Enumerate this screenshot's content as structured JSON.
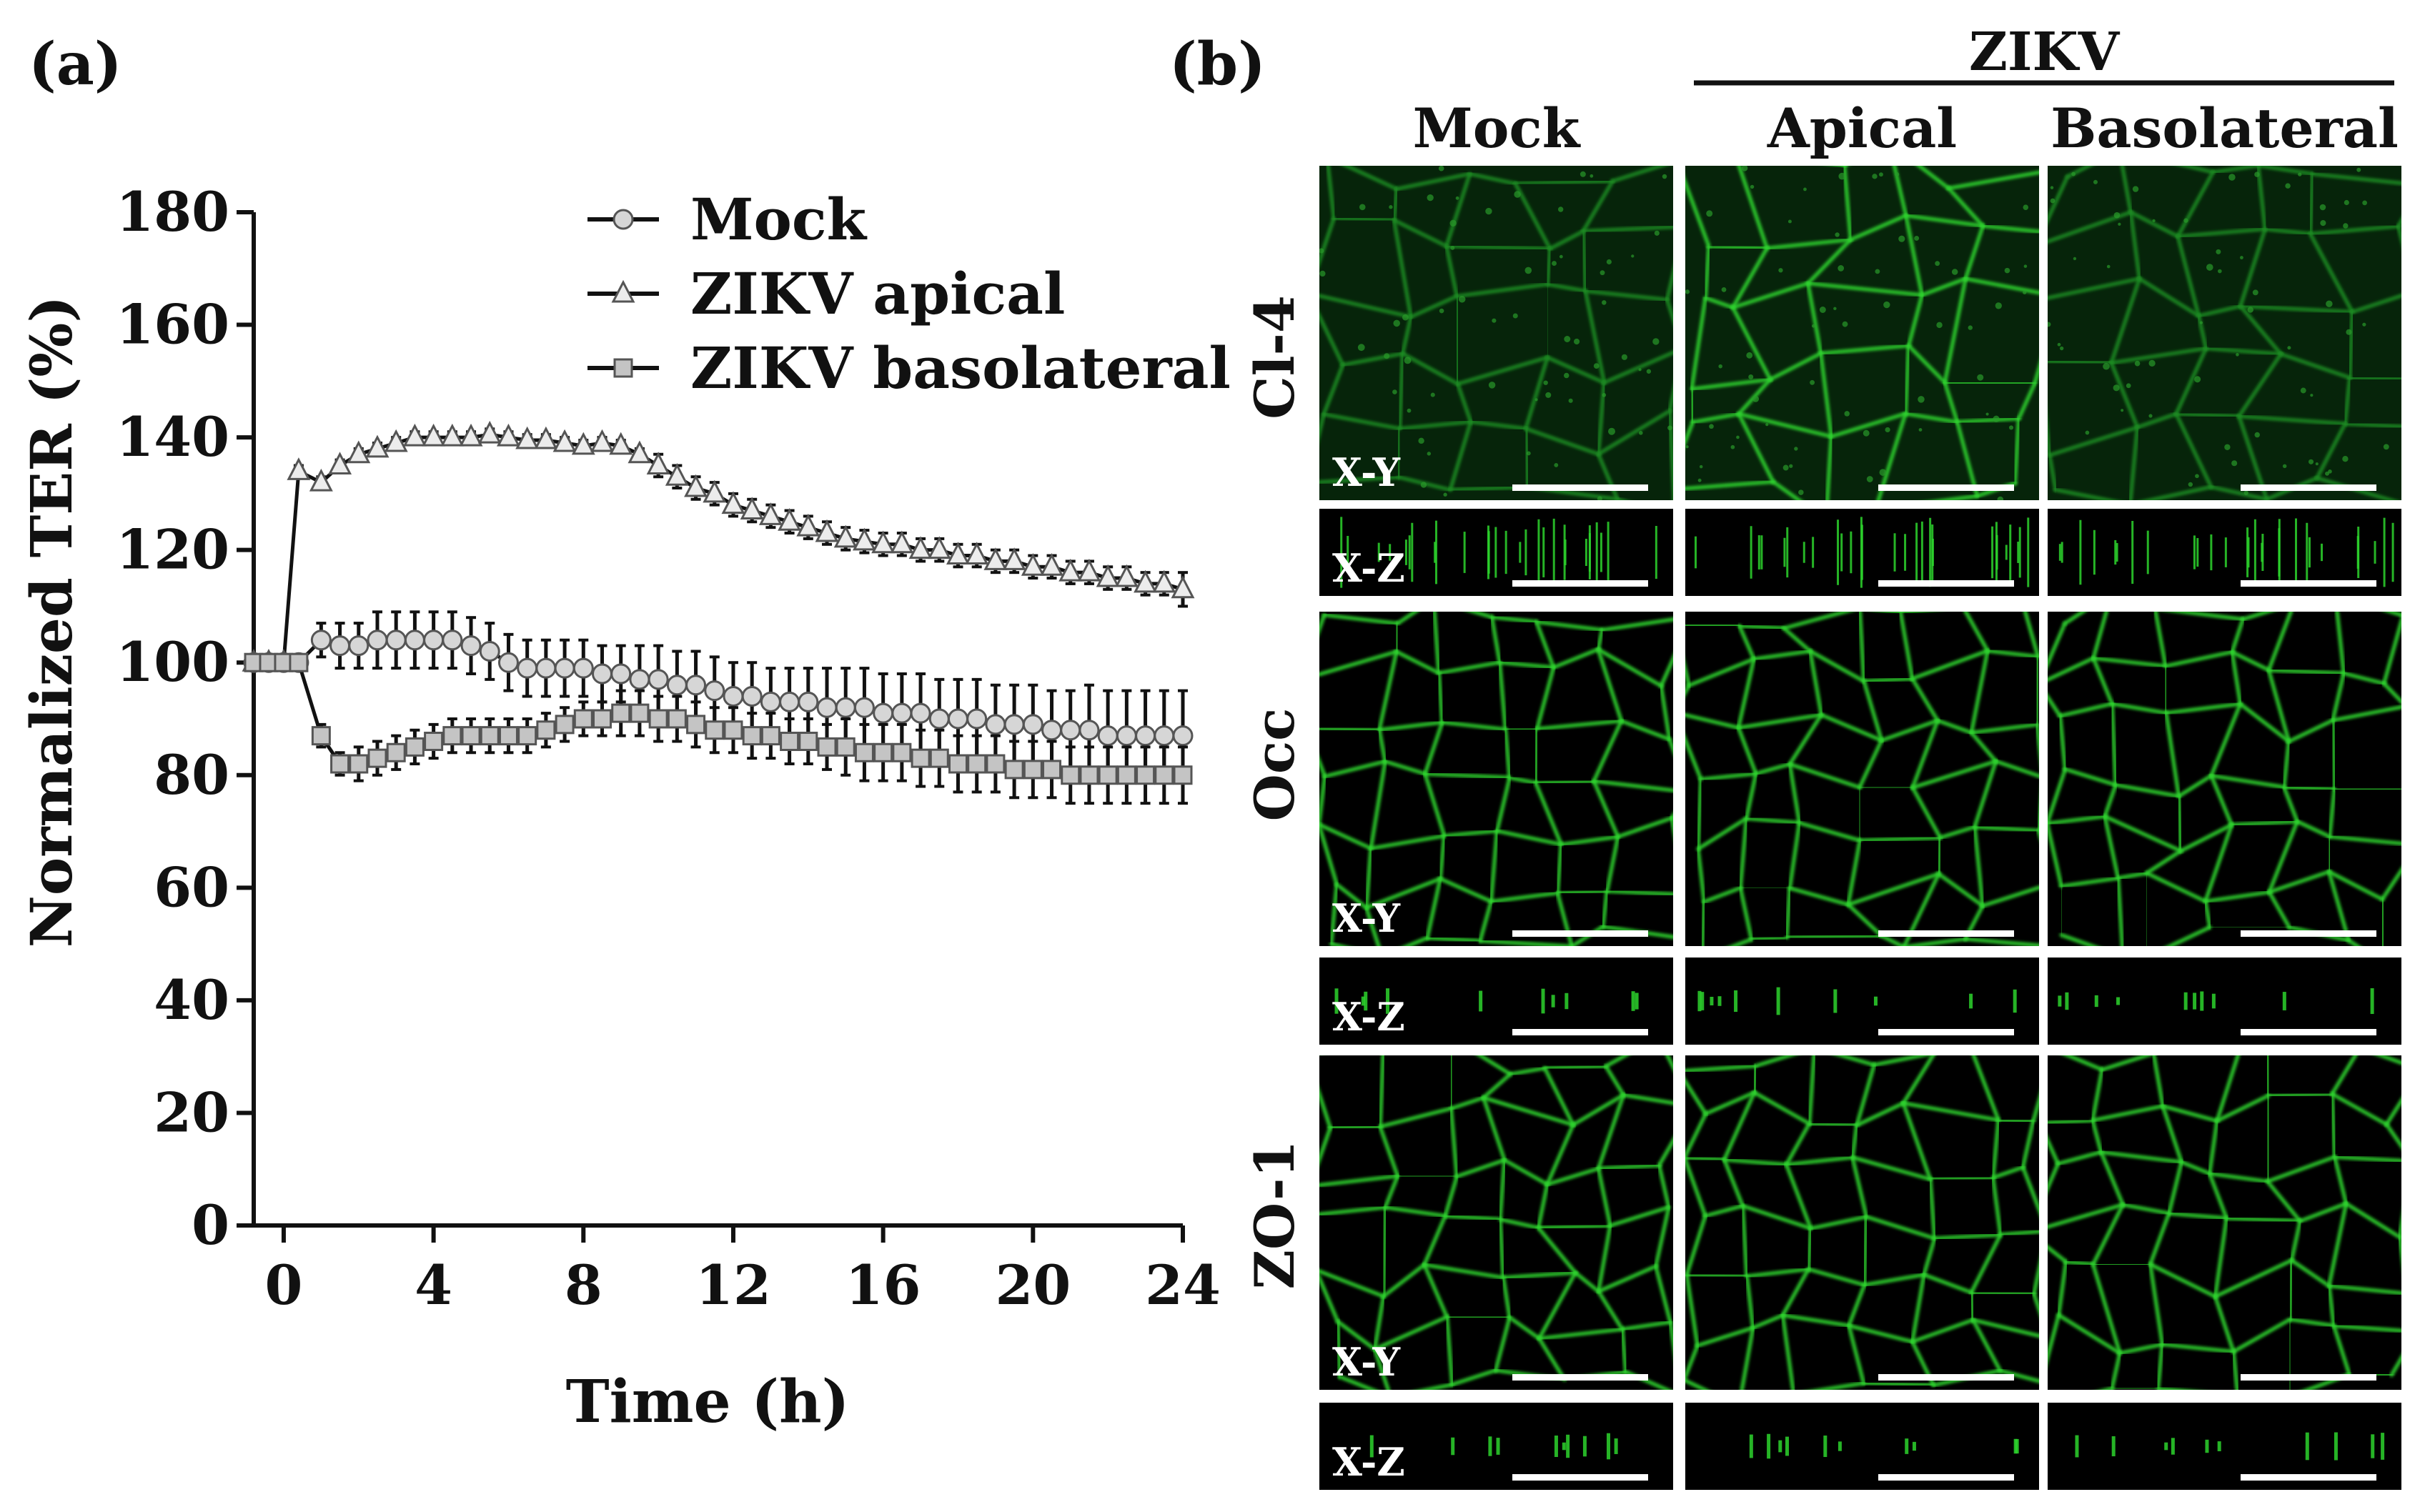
{
  "panel_a": {
    "label": "(a)"
  },
  "panel_b": {
    "label": "(b)",
    "group_header": "ZIKV",
    "columns": [
      "Mock",
      "Apical",
      "Basolateral"
    ],
    "rows": [
      {
        "name": "Cl-4",
        "sublabels": [
          "X-Y",
          "X-Z"
        ]
      },
      {
        "name": "Occ",
        "sublabels": [
          "X-Y",
          "X-Z"
        ]
      },
      {
        "name": "ZO-1",
        "sublabels": [
          "X-Y",
          "X-Z"
        ]
      }
    ],
    "colors": {
      "stain": "#2dd42d",
      "stain_dim": "#0d6a10",
      "background": "#000000",
      "scalebar": "#ffffff"
    }
  },
  "chart_data": {
    "type": "line",
    "title": "",
    "xlabel": "Time (h)",
    "ylabel": "Normalized TER (%)",
    "xlim": [
      -0.8,
      24
    ],
    "ylim": [
      0,
      180
    ],
    "xticks": [
      0,
      4,
      8,
      12,
      16,
      20,
      24
    ],
    "yticks": [
      0,
      20,
      40,
      60,
      80,
      100,
      120,
      140,
      160,
      180
    ],
    "legend_position": "top-right",
    "x": [
      -0.8,
      -0.4,
      0,
      0.4,
      1,
      1.5,
      2,
      2.5,
      3,
      3.5,
      4,
      4.5,
      5,
      5.5,
      6,
      6.5,
      7,
      7.5,
      8,
      8.5,
      9,
      9.5,
      10,
      10.5,
      11,
      11.5,
      12,
      12.5,
      13,
      13.5,
      14,
      14.5,
      15,
      15.5,
      16,
      16.5,
      17,
      17.5,
      18,
      18.5,
      19,
      19.5,
      20,
      20.5,
      21,
      21.5,
      22,
      22.5,
      23,
      23.5,
      24
    ],
    "series": [
      {
        "name": "Mock",
        "marker": "circle",
        "values": [
          100,
          100,
          100,
          100,
          104,
          103,
          103,
          104,
          104,
          104,
          104,
          104,
          103,
          102,
          100,
          99,
          99,
          99,
          99,
          98,
          98,
          97,
          97,
          96,
          96,
          95,
          94,
          94,
          93,
          93,
          93,
          92,
          92,
          92,
          91,
          91,
          91,
          90,
          90,
          90,
          89,
          89,
          89,
          88,
          88,
          88,
          87,
          87,
          87,
          87,
          87
        ],
        "error": [
          0,
          0,
          0,
          0,
          3,
          4,
          4,
          5,
          5,
          5,
          5,
          5,
          5,
          5,
          5,
          5,
          5,
          5,
          5,
          5,
          5,
          6,
          6,
          6,
          6,
          6,
          6,
          6,
          6,
          6,
          6,
          7,
          7,
          7,
          7,
          7,
          7,
          7,
          7,
          7,
          7,
          7,
          7,
          7,
          7,
          8,
          8,
          8,
          8,
          8,
          8
        ]
      },
      {
        "name": "ZIKV apical",
        "marker": "triangle",
        "values": [
          100,
          100,
          100,
          134,
          132,
          135,
          137,
          138,
          139,
          140,
          140,
          140,
          140,
          140.5,
          140,
          139.5,
          139.5,
          139,
          138.5,
          139,
          138.5,
          137,
          135,
          133,
          131,
          130,
          128,
          127,
          126,
          125,
          124,
          123,
          122,
          121.5,
          121,
          121,
          120,
          120,
          119,
          119,
          118,
          118,
          117,
          117,
          116,
          116,
          115,
          115,
          114,
          114,
          113
        ],
        "error": [
          0,
          0,
          0,
          1,
          1,
          1,
          1,
          1,
          1,
          1,
          1,
          1,
          1,
          1,
          1,
          1,
          1,
          1,
          1,
          1,
          1,
          1,
          2,
          2,
          2,
          2,
          2,
          2,
          2,
          2,
          2,
          2,
          2,
          2,
          2,
          2,
          2,
          2,
          2,
          2,
          2,
          2,
          2,
          2,
          2,
          2,
          2,
          2,
          2,
          2,
          3
        ]
      },
      {
        "name": "ZIKV basolateral",
        "marker": "square",
        "values": [
          100,
          100,
          100,
          100,
          87,
          82,
          82,
          83,
          84,
          85,
          86,
          87,
          87,
          87,
          87,
          87,
          88,
          89,
          90,
          90,
          91,
          91,
          90,
          90,
          89,
          88,
          88,
          87,
          87,
          86,
          86,
          85,
          85,
          84,
          84,
          84,
          83,
          83,
          82,
          82,
          82,
          81,
          81,
          81,
          80,
          80,
          80,
          80,
          80,
          80,
          80
        ],
        "error": [
          0,
          0,
          0,
          0,
          2,
          2,
          3,
          3,
          3,
          3,
          3,
          3,
          3,
          3,
          3,
          3,
          3,
          3,
          3,
          3,
          4,
          4,
          4,
          4,
          4,
          4,
          4,
          4,
          4,
          4,
          4,
          4,
          5,
          5,
          5,
          5,
          5,
          5,
          5,
          5,
          5,
          5,
          5,
          5,
          5,
          5,
          5,
          5,
          5,
          5,
          5
        ]
      }
    ]
  }
}
